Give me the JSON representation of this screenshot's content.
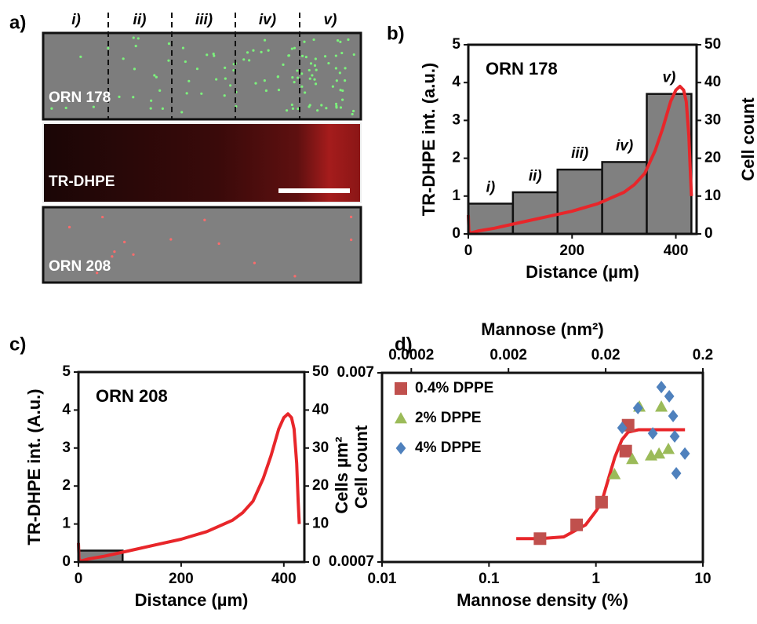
{
  "panel_labels": [
    "a)",
    "b)",
    "c)",
    "d)"
  ],
  "image_panel": {
    "region_labels": [
      "i)",
      "ii)",
      "iii)",
      "iv)",
      "v)"
    ],
    "strips": [
      "ORN 178",
      "TR-DHPE",
      "ORN 208"
    ]
  },
  "chart_data": [
    {
      "type": "histogram",
      "title": "ORN 178",
      "xlabel": "Distance (µm)",
      "ylabel": "TR-DHPE int. (a.u.)",
      "y2label": "Cell count",
      "bins": [
        0,
        86,
        172,
        258,
        344,
        430
      ],
      "counts": [
        8,
        11,
        17,
        19,
        37
      ],
      "bar_labels": [
        "i)",
        "ii)",
        "iii)",
        "iv)",
        "v)"
      ],
      "color": "#808080",
      "xlim": [
        0,
        440
      ],
      "xticks": [
        0,
        200,
        400
      ],
      "ylim": [
        0,
        5
      ],
      "yticks": [
        0,
        1,
        2,
        3,
        4,
        5
      ],
      "y2lim": [
        0,
        50
      ],
      "y2ticks": [
        0,
        10,
        20,
        30,
        40,
        50
      ],
      "series": [
        {
          "color": "#e8262a",
          "x": [
            0,
            1,
            3,
            20,
            50,
            100,
            150,
            200,
            250,
            300,
            320,
            340,
            360,
            375,
            390,
            400,
            408,
            415,
            420,
            425,
            428,
            430
          ],
          "values": [
            0.5,
            0.1,
            0.02,
            0.08,
            0.15,
            0.3,
            0.45,
            0.6,
            0.8,
            1.1,
            1.3,
            1.6,
            2.2,
            2.8,
            3.5,
            3.8,
            3.9,
            3.8,
            3.5,
            2.6,
            1.6,
            1.0
          ]
        }
      ]
    },
    {
      "type": "histogram",
      "title": "ORN 208",
      "xlabel": "Distance (µm)",
      "ylabel": "TR-DHPE int. (A.u.)",
      "y2label": "Cell count",
      "bins": [
        0,
        86
      ],
      "counts": [
        3
      ],
      "color": "#808080",
      "xlim": [
        0,
        440
      ],
      "xticks": [
        0,
        200,
        400
      ],
      "ylim": [
        0,
        5
      ],
      "yticks": [
        0,
        1,
        2,
        3,
        4,
        5
      ],
      "y2lim": [
        0,
        50
      ],
      "y2ticks": [
        0,
        10,
        20,
        30,
        40,
        50
      ],
      "series": [
        {
          "color": "#e8262a",
          "x": [
            0,
            1,
            3,
            20,
            50,
            100,
            150,
            200,
            250,
            300,
            320,
            340,
            360,
            375,
            390,
            400,
            408,
            415,
            420,
            425,
            428,
            430
          ],
          "values": [
            0.5,
            0.1,
            0.02,
            0.08,
            0.15,
            0.3,
            0.45,
            0.6,
            0.8,
            1.1,
            1.3,
            1.6,
            2.2,
            2.8,
            3.5,
            3.8,
            3.9,
            3.8,
            3.5,
            2.6,
            1.6,
            1.0
          ]
        }
      ]
    },
    {
      "type": "scatter",
      "xlabel": "Mannose density (%)",
      "x2label": "Mannose (nm²)",
      "ylabel": "Cells µm²",
      "log_scale": true,
      "legend": "upper left",
      "xlim": [
        0.01,
        10
      ],
      "xticks": [
        0.01,
        0.1,
        1,
        10
      ],
      "x2lim": [
        0.0001,
        0.2
      ],
      "x2ticks": [
        0.0002,
        0.002,
        0.02,
        0.2
      ],
      "ylim": [
        0.0007,
        0.007
      ],
      "yticks": [
        0.0007,
        0.007
      ],
      "series": [
        {
          "name": "0.4% DPPE",
          "color": "#c0504d",
          "marker": "square",
          "x": [
            0.3,
            0.66,
            1.13,
            1.9,
            2.0
          ],
          "values": [
            0.00093,
            0.0011,
            0.00145,
            0.0027,
            0.0037
          ]
        },
        {
          "name": "2% DPPE",
          "color": "#9bbb59",
          "marker": "triangle",
          "x": [
            1.49,
            2.19,
            2.55,
            3.28,
            3.89,
            4.09,
            4.76
          ],
          "values": [
            0.00204,
            0.00245,
            0.00464,
            0.00256,
            0.00262,
            0.00464,
            0.00277
          ]
        },
        {
          "name": "4% DPPE",
          "color": "#4f81bd",
          "marker": "diamond",
          "x": [
            1.76,
            2.47,
            3.4,
            4.09,
            4.85,
            5.27,
            6.79,
            5.64,
            5.45
          ],
          "values": [
            0.00358,
            0.00456,
            0.00335,
            0.00589,
            0.00526,
            0.00414,
            0.00262,
            0.00206,
            0.00323
          ]
        }
      ],
      "fit": {
        "color": "#e8262a",
        "x": [
          0.18,
          0.3,
          0.5,
          0.8,
          1.0,
          1.13,
          1.3,
          1.5,
          1.75,
          2,
          2.5,
          6.8
        ],
        "values": [
          0.00093,
          0.00093,
          0.00095,
          0.0011,
          0.0013,
          0.00145,
          0.0019,
          0.0025,
          0.0031,
          0.0034,
          0.0035,
          0.0035
        ]
      }
    }
  ]
}
